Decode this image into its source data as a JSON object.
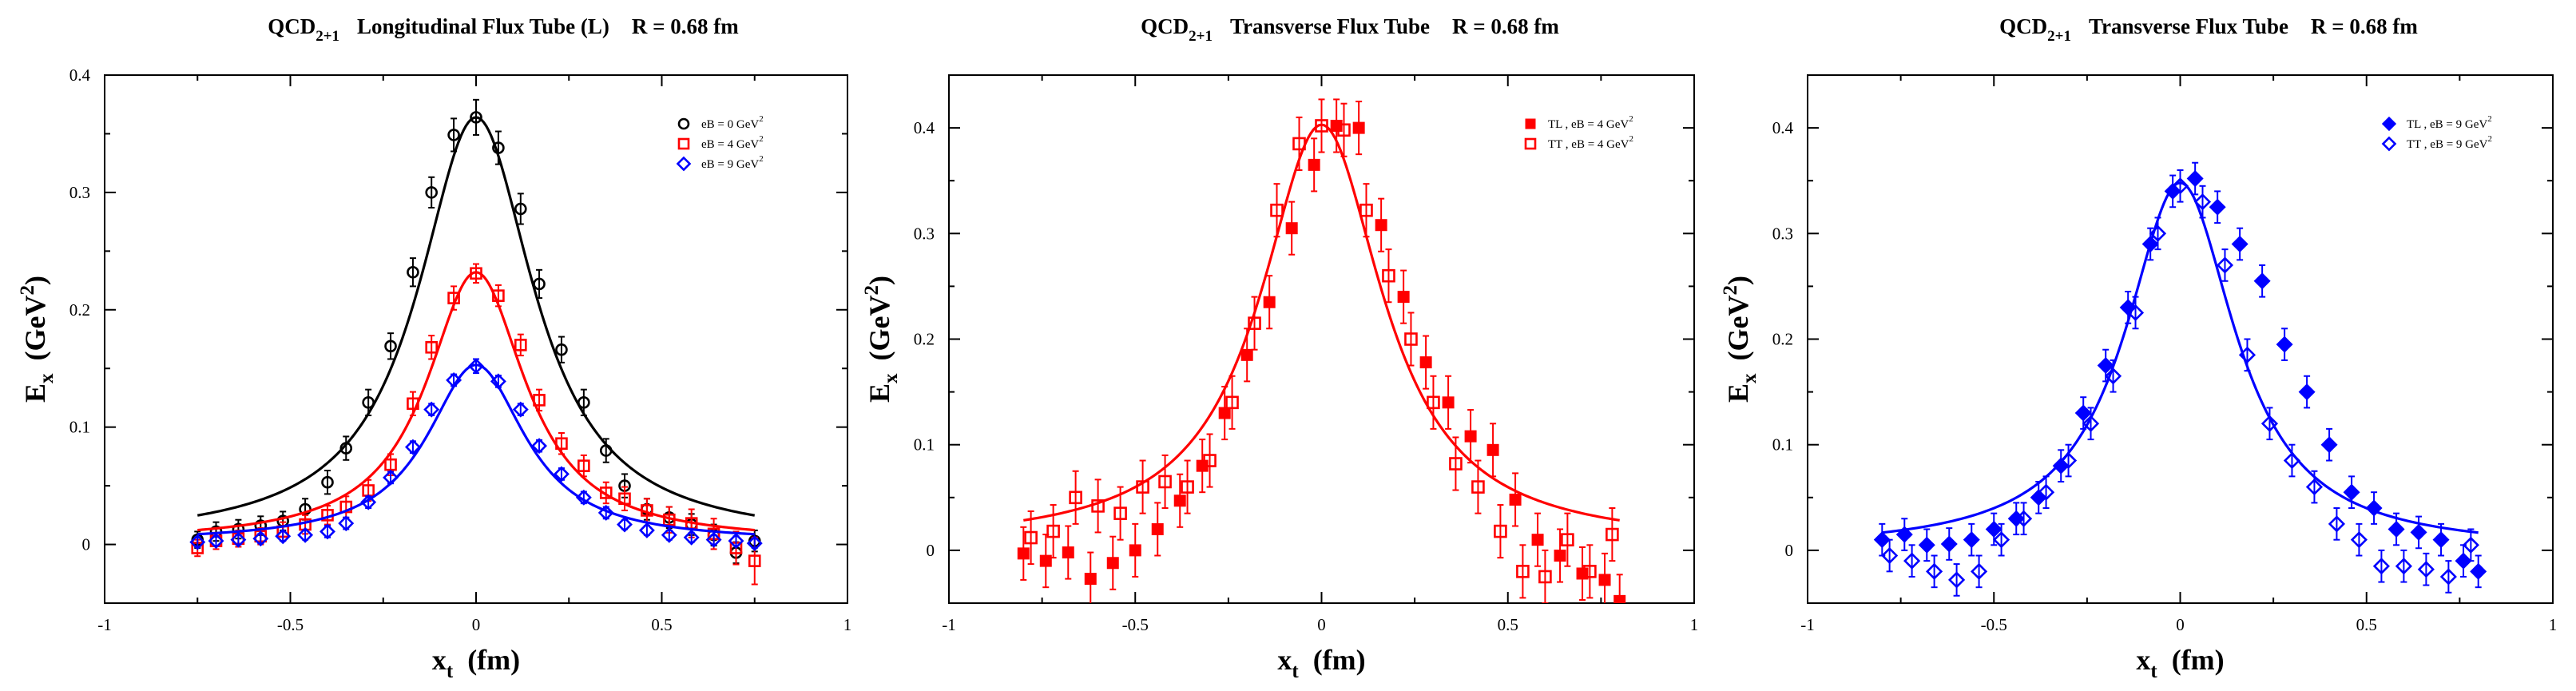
{
  "colors": {
    "black": "#000000",
    "red": "#ff0000",
    "blue": "#0000ff"
  },
  "chart_data": [
    {
      "type": "scatter",
      "title": {
        "pre": "QCD",
        "sub": "2+1",
        "post": "Longitudinal Flux Tube (L)",
        "radius": "R = 0.68 fm"
      },
      "xlabel": {
        "main": "x",
        "sub": "t",
        "unit": "(fm)"
      },
      "ylabel": {
        "main": "E",
        "sub": "x",
        "unit": "(GeV",
        "sup": "2",
        "close": ")"
      },
      "xlim": [
        -1,
        1
      ],
      "ylim": [
        -0.05,
        0.4
      ],
      "xticks": [
        -1,
        -0.5,
        0,
        0.5,
        1
      ],
      "xtick_labels": [
        "-1",
        "-0.5",
        "0",
        "0.5",
        "1"
      ],
      "yticks": [
        0,
        0.1,
        0.2,
        0.3,
        0.4
      ],
      "ytick_labels": [
        "0",
        "0.1",
        "0.2",
        "0.3",
        "0.4"
      ],
      "legend_position": "top-right",
      "series": [
        {
          "name": "eB = 0 GeV",
          "name_sup": "2",
          "color": "#000000",
          "marker": "circle-open",
          "x": [
            -0.75,
            -0.7,
            -0.64,
            -0.58,
            -0.52,
            -0.46,
            -0.4,
            -0.35,
            -0.29,
            -0.23,
            -0.17,
            -0.12,
            -0.06,
            0,
            0.06,
            0.12,
            0.17,
            0.23,
            0.29,
            0.35,
            0.4,
            0.46,
            0.52,
            0.58,
            0.64,
            0.7,
            0.75
          ],
          "y": [
            0.004,
            0.011,
            0.013,
            0.016,
            0.02,
            0.03,
            0.053,
            0.082,
            0.121,
            0.169,
            0.232,
            0.3,
            0.349,
            0.364,
            0.338,
            0.286,
            0.222,
            0.166,
            0.121,
            0.08,
            0.05,
            0.03,
            0.023,
            0.017,
            0.008,
            -0.007,
            0.003
          ],
          "err": [
            0.007,
            0.008,
            0.008,
            0.008,
            0.008,
            0.009,
            0.01,
            0.01,
            0.011,
            0.011,
            0.012,
            0.013,
            0.014,
            0.015,
            0.014,
            0.013,
            0.012,
            0.011,
            0.011,
            0.01,
            0.01,
            0.009,
            0.009,
            0.009,
            0.009,
            0.009,
            0.009
          ],
          "fit": {
            "offset": 0.003,
            "peak": 0.361,
            "width": 0.19
          }
        },
        {
          "name": "eB = 4 GeV",
          "name_sup": "2",
          "color": "#ff0000",
          "marker": "square-open",
          "x": [
            -0.75,
            -0.7,
            -0.64,
            -0.58,
            -0.52,
            -0.46,
            -0.4,
            -0.35,
            -0.29,
            -0.23,
            -0.17,
            -0.12,
            -0.06,
            0,
            0.06,
            0.12,
            0.17,
            0.23,
            0.29,
            0.35,
            0.4,
            0.46,
            0.52,
            0.58,
            0.64,
            0.7,
            0.75
          ],
          "y": [
            -0.003,
            0.003,
            0.005,
            0.007,
            0.011,
            0.017,
            0.025,
            0.032,
            0.046,
            0.068,
            0.12,
            0.168,
            0.21,
            0.231,
            0.212,
            0.17,
            0.123,
            0.086,
            0.067,
            0.044,
            0.039,
            0.029,
            0.021,
            0.018,
            0.009,
            -0.003,
            -0.014
          ],
          "err": [
            0.007,
            0.007,
            0.007,
            0.007,
            0.008,
            0.008,
            0.008,
            0.009,
            0.009,
            0.009,
            0.01,
            0.01,
            0.01,
            0.008,
            0.009,
            0.009,
            0.009,
            0.009,
            0.009,
            0.009,
            0.01,
            0.01,
            0.011,
            0.012,
            0.013,
            0.014,
            0.02
          ],
          "fit": {
            "offset": 0.002,
            "peak": 0.23,
            "width": 0.162
          }
        },
        {
          "name": "eB = 9 GeV",
          "name_sup": "2",
          "color": "#0000ff",
          "marker": "diamond-open",
          "x": [
            -0.75,
            -0.7,
            -0.64,
            -0.58,
            -0.52,
            -0.46,
            -0.4,
            -0.35,
            -0.29,
            -0.23,
            -0.17,
            -0.12,
            -0.06,
            0,
            0.06,
            0.12,
            0.17,
            0.23,
            0.29,
            0.35,
            0.4,
            0.46,
            0.52,
            0.58,
            0.64,
            0.7,
            0.75
          ],
          "y": [
            0.002,
            0.003,
            0.004,
            0.005,
            0.007,
            0.008,
            0.011,
            0.018,
            0.036,
            0.057,
            0.083,
            0.115,
            0.14,
            0.152,
            0.139,
            0.115,
            0.084,
            0.06,
            0.04,
            0.027,
            0.017,
            0.012,
            0.008,
            0.006,
            0.004,
            0.003,
            0.001
          ],
          "err": [
            0.004,
            0.004,
            0.004,
            0.004,
            0.004,
            0.004,
            0.005,
            0.005,
            0.005,
            0.005,
            0.005,
            0.005,
            0.005,
            0.006,
            0.005,
            0.005,
            0.005,
            0.005,
            0.005,
            0.005,
            0.004,
            0.004,
            0.004,
            0.004,
            0.004,
            0.004,
            0.004
          ],
          "fit": {
            "offset": 0.002,
            "peak": 0.151,
            "width": 0.162
          }
        }
      ]
    },
    {
      "type": "scatter",
      "title": {
        "pre": "QCD",
        "sub": "2+1",
        "post": "Transverse Flux Tube",
        "radius": "R = 0.68 fm"
      },
      "xlabel": {
        "main": "x",
        "sub": "t",
        "unit": "(fm)"
      },
      "ylabel": {
        "main": "E",
        "sub": "x",
        "unit": "(GeV",
        "sup": "2",
        "close": ")"
      },
      "xlim": [
        -1,
        1
      ],
      "ylim": [
        -0.05,
        0.45
      ],
      "xticks": [
        -1,
        -0.5,
        0,
        0.5,
        1
      ],
      "xtick_labels": [
        "-1",
        "-0.5",
        "0",
        "0.5",
        "1"
      ],
      "yticks": [
        0,
        0.1,
        0.2,
        0.3,
        0.4
      ],
      "ytick_labels": [
        "0",
        "0.1",
        "0.2",
        "0.3",
        "0.4"
      ],
      "legend_position": "top-right",
      "series": [
        {
          "name": "TL , eB = 4 GeV",
          "name_sup": "2",
          "color": "#ff0000",
          "marker": "square-filled",
          "x": [
            -0.8,
            -0.74,
            -0.68,
            -0.62,
            -0.56,
            -0.5,
            -0.44,
            -0.38,
            -0.32,
            -0.26,
            -0.2,
            -0.14,
            -0.08,
            -0.02,
            0.04,
            0.1,
            0.16,
            0.22,
            0.28,
            0.34,
            0.4,
            0.46,
            0.52,
            0.58,
            0.64,
            0.7,
            0.76,
            0.8
          ],
          "y": [
            -0.003,
            -0.01,
            -0.002,
            -0.027,
            -0.012,
            0.0,
            0.02,
            0.047,
            0.08,
            0.13,
            0.185,
            0.235,
            0.305,
            0.365,
            0.402,
            0.4,
            0.308,
            0.24,
            0.178,
            0.14,
            0.108,
            0.095,
            0.048,
            0.01,
            -0.005,
            -0.022,
            -0.028,
            -0.048
          ],
          "err": [
            0.025,
            0.025,
            0.025,
            0.025,
            0.025,
            0.025,
            0.025,
            0.025,
            0.025,
            0.025,
            0.025,
            0.025,
            0.025,
            0.025,
            0.025,
            0.025,
            0.025,
            0.025,
            0.025,
            0.025,
            0.025,
            0.025,
            0.025,
            0.025,
            0.025,
            0.025,
            0.025,
            0.025
          ]
        },
        {
          "name": "TT , eB = 4 GeV",
          "name_sup": "2",
          "color": "#ff0000",
          "marker": "square-open",
          "x": [
            -0.78,
            -0.72,
            -0.66,
            -0.6,
            -0.54,
            -0.48,
            -0.42,
            -0.36,
            -0.3,
            -0.24,
            -0.18,
            -0.12,
            -0.06,
            0.0,
            0.06,
            0.12,
            0.18,
            0.24,
            0.3,
            0.36,
            0.42,
            0.48,
            0.54,
            0.6,
            0.66,
            0.72,
            0.78
          ],
          "y": [
            0.012,
            0.018,
            0.05,
            0.042,
            0.035,
            0.06,
            0.065,
            0.06,
            0.085,
            0.14,
            0.215,
            0.322,
            0.385,
            0.402,
            0.398,
            0.322,
            0.26,
            0.2,
            0.14,
            0.082,
            0.06,
            0.018,
            -0.02,
            -0.025,
            0.01,
            -0.02,
            0.015
          ],
          "err": [
            0.025,
            0.025,
            0.025,
            0.025,
            0.025,
            0.025,
            0.025,
            0.025,
            0.025,
            0.025,
            0.025,
            0.025,
            0.025,
            0.025,
            0.025,
            0.025,
            0.025,
            0.025,
            0.025,
            0.025,
            0.025,
            0.025,
            0.025,
            0.025,
            0.025,
            0.025,
            0.025
          ]
        }
      ],
      "fit": {
        "color": "#ff0000",
        "offset": 0.005,
        "peak": 0.398,
        "width": 0.2
      }
    },
    {
      "type": "scatter",
      "title": {
        "pre": "QCD",
        "sub": "2+1",
        "post": "Transverse Flux Tube",
        "radius": "R = 0.68 fm"
      },
      "xlabel": {
        "main": "x",
        "sub": "t",
        "unit": "(fm)"
      },
      "ylabel": {
        "main": "E",
        "sub": "x",
        "unit": "(GeV",
        "sup": "2",
        "close": ")"
      },
      "xlim": [
        -1,
        1
      ],
      "ylim": [
        -0.05,
        0.45
      ],
      "xticks": [
        -1,
        -0.5,
        0,
        0.5,
        1
      ],
      "xtick_labels": [
        "-1",
        "-0.5",
        "0",
        "0.5",
        "1"
      ],
      "yticks": [
        0,
        0.1,
        0.2,
        0.3,
        0.4
      ],
      "ytick_labels": [
        "0",
        "0.1",
        "0.2",
        "0.3",
        "0.4"
      ],
      "legend_position": "top-right",
      "series": [
        {
          "name": "TL , eB = 9 GeV",
          "name_sup": "2",
          "color": "#0000ff",
          "marker": "diamond-filled",
          "x": [
            -0.8,
            -0.74,
            -0.68,
            -0.62,
            -0.56,
            -0.5,
            -0.44,
            -0.38,
            -0.32,
            -0.26,
            -0.2,
            -0.14,
            -0.08,
            -0.02,
            0.04,
            0.1,
            0.16,
            0.22,
            0.28,
            0.34,
            0.4,
            0.46,
            0.52,
            0.58,
            0.64,
            0.7,
            0.76,
            0.8
          ],
          "y": [
            0.01,
            0.015,
            0.005,
            0.006,
            0.01,
            0.02,
            0.03,
            0.05,
            0.08,
            0.13,
            0.175,
            0.23,
            0.29,
            0.34,
            0.352,
            0.325,
            0.29,
            0.255,
            0.195,
            0.15,
            0.1,
            0.055,
            0.04,
            0.02,
            0.017,
            0.01,
            -0.01,
            -0.02
          ],
          "err": [
            0.015,
            0.015,
            0.015,
            0.015,
            0.015,
            0.015,
            0.015,
            0.015,
            0.015,
            0.015,
            0.015,
            0.015,
            0.015,
            0.015,
            0.015,
            0.015,
            0.015,
            0.015,
            0.015,
            0.015,
            0.015,
            0.015,
            0.015,
            0.015,
            0.015,
            0.015,
            0.015,
            0.015
          ]
        },
        {
          "name": "TT , eB = 9 GeV",
          "name_sup": "2",
          "color": "#0000ff",
          "marker": "diamond-open",
          "x": [
            -0.78,
            -0.72,
            -0.66,
            -0.6,
            -0.54,
            -0.48,
            -0.42,
            -0.36,
            -0.3,
            -0.24,
            -0.18,
            -0.12,
            -0.06,
            0.0,
            0.06,
            0.12,
            0.18,
            0.24,
            0.3,
            0.36,
            0.42,
            0.48,
            0.54,
            0.6,
            0.66,
            0.72,
            0.78
          ],
          "y": [
            -0.005,
            -0.01,
            -0.02,
            -0.028,
            -0.02,
            0.01,
            0.03,
            0.055,
            0.085,
            0.12,
            0.165,
            0.225,
            0.3,
            0.345,
            0.33,
            0.27,
            0.185,
            0.12,
            0.085,
            0.06,
            0.025,
            0.01,
            -0.015,
            -0.015,
            -0.018,
            -0.025,
            0.005
          ],
          "err": [
            0.015,
            0.015,
            0.015,
            0.015,
            0.015,
            0.015,
            0.015,
            0.015,
            0.015,
            0.015,
            0.015,
            0.015,
            0.015,
            0.015,
            0.015,
            0.015,
            0.015,
            0.015,
            0.015,
            0.015,
            0.015,
            0.015,
            0.015,
            0.015,
            0.015,
            0.015,
            0.015
          ]
        }
      ],
      "fit": {
        "color": "#0000ff",
        "offset": 0.0,
        "peak": 0.348,
        "width": 0.18
      }
    }
  ]
}
